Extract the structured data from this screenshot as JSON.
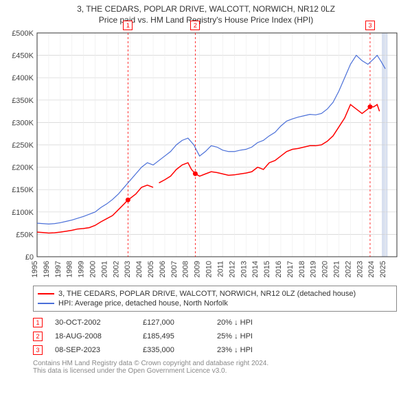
{
  "title_line1": "3, THE CEDARS, POPLAR DRIVE, WALCOTT, NORWICH, NR12 0LZ",
  "title_line2": "Price paid vs. HM Land Registry's House Price Index (HPI)",
  "chart": {
    "type": "line",
    "background_color": "#ffffff",
    "grid_color": "#d0d0d0",
    "grid_minor_color": "#eeeeee",
    "axis_color": "#333333",
    "label_fontsize": 11,
    "xlim": [
      1995,
      2026
    ],
    "ylim": [
      0,
      500000
    ],
    "ytick_step": 50000,
    "ytick_labels": [
      "£0",
      "£50K",
      "£100K",
      "£150K",
      "£200K",
      "£250K",
      "£300K",
      "£350K",
      "£400K",
      "£450K",
      "£500K"
    ],
    "xtick_step": 1,
    "xtick_labels": [
      "1995",
      "1996",
      "1997",
      "1998",
      "1999",
      "2000",
      "2001",
      "2002",
      "2003",
      "2004",
      "2005",
      "2006",
      "2007",
      "2008",
      "2009",
      "2010",
      "2011",
      "2012",
      "2013",
      "2014",
      "2015",
      "2016",
      "2017",
      "2018",
      "2019",
      "2020",
      "2021",
      "2022",
      "2023",
      "2024",
      "2025"
    ],
    "highlight_band": {
      "from": 2024.7,
      "to": 2025.2,
      "color": "#d8e0f0"
    },
    "series": [
      {
        "name": "property",
        "color": "#ff0000",
        "line_width": 1.5,
        "break_after_index": 21,
        "points": [
          [
            1995.0,
            55000
          ],
          [
            1995.5,
            54000
          ],
          [
            1996.0,
            53000
          ],
          [
            1996.5,
            53500
          ],
          [
            1997.0,
            55000
          ],
          [
            1997.5,
            57000
          ],
          [
            1998.0,
            59000
          ],
          [
            1998.5,
            62000
          ],
          [
            1999.0,
            63000
          ],
          [
            1999.5,
            65000
          ],
          [
            2000.0,
            70000
          ],
          [
            2000.5,
            78000
          ],
          [
            2001.0,
            85000
          ],
          [
            2001.5,
            92000
          ],
          [
            2002.0,
            105000
          ],
          [
            2002.5,
            118000
          ],
          [
            2002.83,
            127000
          ],
          [
            2003.0,
            130000
          ],
          [
            2003.5,
            140000
          ],
          [
            2004.0,
            155000
          ],
          [
            2004.5,
            160000
          ],
          [
            2005.0,
            155000
          ],
          [
            2005.5,
            165000
          ],
          [
            2006.0,
            172000
          ],
          [
            2006.5,
            180000
          ],
          [
            2007.0,
            195000
          ],
          [
            2007.5,
            205000
          ],
          [
            2008.0,
            210000
          ],
          [
            2008.3,
            195000
          ],
          [
            2008.63,
            185495
          ],
          [
            2009.0,
            180000
          ],
          [
            2009.5,
            185000
          ],
          [
            2010.0,
            190000
          ],
          [
            2010.5,
            188000
          ],
          [
            2011.0,
            185000
          ],
          [
            2011.5,
            182000
          ],
          [
            2012.0,
            183000
          ],
          [
            2012.5,
            185000
          ],
          [
            2013.0,
            187000
          ],
          [
            2013.5,
            190000
          ],
          [
            2014.0,
            200000
          ],
          [
            2014.5,
            195000
          ],
          [
            2015.0,
            210000
          ],
          [
            2015.5,
            215000
          ],
          [
            2016.0,
            225000
          ],
          [
            2016.5,
            235000
          ],
          [
            2017.0,
            240000
          ],
          [
            2017.5,
            242000
          ],
          [
            2018.0,
            245000
          ],
          [
            2018.5,
            248000
          ],
          [
            2019.0,
            248000
          ],
          [
            2019.5,
            250000
          ],
          [
            2020.0,
            258000
          ],
          [
            2020.5,
            270000
          ],
          [
            2021.0,
            290000
          ],
          [
            2021.5,
            310000
          ],
          [
            2022.0,
            340000
          ],
          [
            2022.5,
            330000
          ],
          [
            2023.0,
            320000
          ],
          [
            2023.5,
            330000
          ],
          [
            2023.69,
            335000
          ],
          [
            2024.0,
            335000
          ],
          [
            2024.3,
            340000
          ],
          [
            2024.5,
            325000
          ]
        ],
        "sale_markers": [
          {
            "n": "1",
            "x": 2002.83,
            "y": 127000
          },
          {
            "n": "2",
            "x": 2008.63,
            "y": 185495
          },
          {
            "n": "3",
            "x": 2023.69,
            "y": 335000
          }
        ]
      },
      {
        "name": "hpi",
        "color": "#4a6fd8",
        "line_width": 1.2,
        "points": [
          [
            1995.0,
            75000
          ],
          [
            1995.5,
            74000
          ],
          [
            1996.0,
            73000
          ],
          [
            1996.5,
            74000
          ],
          [
            1997.0,
            76000
          ],
          [
            1997.5,
            79000
          ],
          [
            1998.0,
            82000
          ],
          [
            1998.5,
            86000
          ],
          [
            1999.0,
            90000
          ],
          [
            1999.5,
            95000
          ],
          [
            2000.0,
            100000
          ],
          [
            2000.5,
            110000
          ],
          [
            2001.0,
            118000
          ],
          [
            2001.5,
            128000
          ],
          [
            2002.0,
            140000
          ],
          [
            2002.5,
            155000
          ],
          [
            2003.0,
            170000
          ],
          [
            2003.5,
            185000
          ],
          [
            2004.0,
            200000
          ],
          [
            2004.5,
            210000
          ],
          [
            2005.0,
            205000
          ],
          [
            2005.5,
            215000
          ],
          [
            2006.0,
            225000
          ],
          [
            2006.5,
            235000
          ],
          [
            2007.0,
            250000
          ],
          [
            2007.5,
            260000
          ],
          [
            2008.0,
            265000
          ],
          [
            2008.5,
            250000
          ],
          [
            2009.0,
            225000
          ],
          [
            2009.5,
            235000
          ],
          [
            2010.0,
            248000
          ],
          [
            2010.5,
            245000
          ],
          [
            2011.0,
            238000
          ],
          [
            2011.5,
            235000
          ],
          [
            2012.0,
            235000
          ],
          [
            2012.5,
            238000
          ],
          [
            2013.0,
            240000
          ],
          [
            2013.5,
            245000
          ],
          [
            2014.0,
            255000
          ],
          [
            2014.5,
            260000
          ],
          [
            2015.0,
            270000
          ],
          [
            2015.5,
            278000
          ],
          [
            2016.0,
            292000
          ],
          [
            2016.5,
            303000
          ],
          [
            2017.0,
            308000
          ],
          [
            2017.5,
            312000
          ],
          [
            2018.0,
            315000
          ],
          [
            2018.5,
            318000
          ],
          [
            2019.0,
            317000
          ],
          [
            2019.5,
            320000
          ],
          [
            2020.0,
            330000
          ],
          [
            2020.5,
            345000
          ],
          [
            2021.0,
            370000
          ],
          [
            2021.5,
            400000
          ],
          [
            2022.0,
            430000
          ],
          [
            2022.5,
            450000
          ],
          [
            2023.0,
            438000
          ],
          [
            2023.5,
            430000
          ],
          [
            2024.0,
            442000
          ],
          [
            2024.3,
            450000
          ],
          [
            2024.6,
            438000
          ],
          [
            2025.0,
            420000
          ]
        ]
      }
    ],
    "sale_vlines_color": "#ff0000",
    "sale_vlines_dash": "3,3"
  },
  "legend": {
    "items": [
      {
        "color": "#ff0000",
        "label": "3, THE CEDARS, POPLAR DRIVE, WALCOTT, NORWICH, NR12 0LZ (detached house)"
      },
      {
        "color": "#4a6fd8",
        "label": "HPI: Average price, detached house, North Norfolk"
      }
    ]
  },
  "sales": [
    {
      "n": "1",
      "date": "30-OCT-2002",
      "price": "£127,000",
      "delta": "20% ↓ HPI"
    },
    {
      "n": "2",
      "date": "18-AUG-2008",
      "price": "£185,495",
      "delta": "25% ↓ HPI"
    },
    {
      "n": "3",
      "date": "08-SEP-2023",
      "price": "£335,000",
      "delta": "23% ↓ HPI"
    }
  ],
  "attribution_line1": "Contains HM Land Registry data © Crown copyright and database right 2024.",
  "attribution_line2": "This data is licensed under the Open Government Licence v3.0."
}
